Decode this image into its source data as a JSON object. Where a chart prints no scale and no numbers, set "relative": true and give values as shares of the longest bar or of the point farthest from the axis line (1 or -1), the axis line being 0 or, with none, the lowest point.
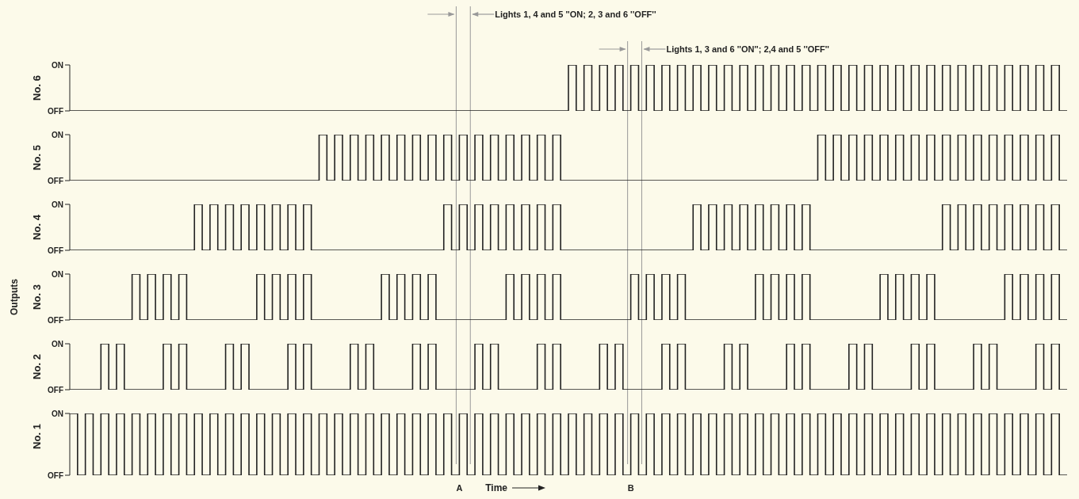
{
  "chart_data": [
    {
      "type": "step",
      "ylabel": "No. 6",
      "tick_labels": false,
      "relative": true,
      "categories": [
        null,
        null,
        null,
        null,
        null,
        null,
        null,
        null,
        null,
        null,
        null,
        null,
        null,
        null,
        null,
        null,
        null,
        null,
        null,
        null,
        null,
        null,
        null,
        null,
        null,
        null,
        null,
        null,
        null,
        null,
        null,
        null,
        null,
        null,
        null,
        null,
        null,
        null,
        null,
        null,
        null,
        null,
        null,
        null,
        null,
        null,
        null,
        null,
        null,
        null,
        null,
        null,
        null,
        null,
        null,
        null,
        null,
        null,
        null,
        null,
        null,
        null,
        null,
        null,
        null,
        null,
        null,
        null,
        null,
        null,
        null,
        null,
        null,
        null,
        null,
        null,
        null,
        null,
        null,
        null,
        null,
        null,
        null,
        null,
        null,
        null,
        null,
        null,
        null,
        null,
        null,
        null,
        null,
        null,
        null,
        null,
        null,
        null,
        null,
        null,
        null,
        null,
        null,
        null,
        null,
        null,
        null,
        null,
        null,
        null,
        null,
        null,
        null,
        null,
        null,
        null,
        null,
        null,
        null,
        null,
        null,
        null,
        null,
        null,
        null,
        null,
        null,
        null,
        null
      ],
      "series": [
        {
          "color": "#222222",
          "values": [
            0,
            0,
            0,
            0,
            0,
            0,
            0,
            0,
            0,
            0,
            0,
            0,
            0,
            0,
            0,
            0,
            0,
            0,
            0,
            0,
            0,
            0,
            0,
            0,
            0,
            0,
            0,
            0,
            0,
            0,
            0,
            0,
            0,
            0,
            0,
            0,
            0,
            0,
            0,
            0,
            0,
            0,
            0,
            0,
            0,
            0,
            0,
            0,
            0,
            0,
            0,
            0,
            0,
            0,
            0,
            0,
            0,
            0,
            0,
            0,
            0,
            0,
            0,
            0,
            1,
            0,
            1,
            0,
            1,
            0,
            1,
            0,
            1,
            0,
            1,
            0,
            1,
            0,
            1,
            0,
            1,
            0,
            1,
            0,
            1,
            0,
            1,
            0,
            1,
            0,
            1,
            0,
            1,
            0,
            1,
            0,
            1,
            0,
            1,
            0,
            1,
            0,
            1,
            0,
            1,
            0,
            1,
            0,
            1,
            0,
            1,
            0,
            1,
            0,
            1,
            0,
            1,
            0,
            1,
            0,
            1,
            0,
            1,
            0,
            1,
            0,
            1,
            0,
            0
          ]
        }
      ],
      "annotations": [
        "ON",
        "OFF"
      ]
    },
    {
      "type": "step",
      "ylabel": "No. 5",
      "tick_labels": false,
      "relative": true,
      "categories": [
        null,
        null,
        null,
        null,
        null,
        null,
        null,
        null,
        null,
        null,
        null,
        null,
        null,
        null,
        null,
        null,
        null,
        null,
        null,
        null,
        null,
        null,
        null,
        null,
        null,
        null,
        null,
        null,
        null,
        null,
        null,
        null,
        null,
        null,
        null,
        null,
        null,
        null,
        null,
        null,
        null,
        null,
        null,
        null,
        null,
        null,
        null,
        null,
        null,
        null,
        null,
        null,
        null,
        null,
        null,
        null,
        null,
        null,
        null,
        null,
        null,
        null,
        null,
        null,
        null,
        null,
        null,
        null,
        null,
        null,
        null,
        null,
        null,
        null,
        null,
        null,
        null,
        null,
        null,
        null,
        null,
        null,
        null,
        null,
        null,
        null,
        null,
        null,
        null,
        null,
        null,
        null,
        null,
        null,
        null,
        null,
        null,
        null,
        null,
        null,
        null,
        null,
        null,
        null,
        null,
        null,
        null,
        null,
        null,
        null,
        null,
        null,
        null,
        null,
        null,
        null,
        null,
        null,
        null,
        null,
        null,
        null,
        null,
        null,
        null,
        null,
        null,
        null,
        null
      ],
      "series": [
        {
          "color": "#222222",
          "values": [
            0,
            0,
            0,
            0,
            0,
            0,
            0,
            0,
            0,
            0,
            0,
            0,
            0,
            0,
            0,
            0,
            0,
            0,
            0,
            0,
            0,
            0,
            0,
            0,
            0,
            0,
            0,
            0,
            0,
            0,
            0,
            0,
            1,
            0,
            1,
            0,
            1,
            0,
            1,
            0,
            1,
            0,
            1,
            0,
            1,
            0,
            1,
            0,
            1,
            0,
            1,
            0,
            1,
            0,
            1,
            0,
            1,
            0,
            1,
            0,
            1,
            0,
            1,
            0,
            0,
            0,
            0,
            0,
            0,
            0,
            0,
            0,
            0,
            0,
            0,
            0,
            0,
            0,
            0,
            0,
            0,
            0,
            0,
            0,
            0,
            0,
            0,
            0,
            0,
            0,
            0,
            0,
            0,
            0,
            0,
            0,
            1,
            0,
            1,
            0,
            1,
            0,
            1,
            0,
            1,
            0,
            1,
            0,
            1,
            0,
            1,
            0,
            1,
            0,
            1,
            0,
            1,
            0,
            1,
            0,
            1,
            0,
            1,
            0,
            1,
            0,
            1,
            0,
            0
          ]
        }
      ],
      "annotations": [
        "ON",
        "OFF"
      ]
    },
    {
      "type": "step",
      "ylabel": "No. 4",
      "tick_labels": false,
      "relative": true,
      "categories": [
        null,
        null,
        null,
        null,
        null,
        null,
        null,
        null,
        null,
        null,
        null,
        null,
        null,
        null,
        null,
        null,
        null,
        null,
        null,
        null,
        null,
        null,
        null,
        null,
        null,
        null,
        null,
        null,
        null,
        null,
        null,
        null,
        null,
        null,
        null,
        null,
        null,
        null,
        null,
        null,
        null,
        null,
        null,
        null,
        null,
        null,
        null,
        null,
        null,
        null,
        null,
        null,
        null,
        null,
        null,
        null,
        null,
        null,
        null,
        null,
        null,
        null,
        null,
        null,
        null,
        null,
        null,
        null,
        null,
        null,
        null,
        null,
        null,
        null,
        null,
        null,
        null,
        null,
        null,
        null,
        null,
        null,
        null,
        null,
        null,
        null,
        null,
        null,
        null,
        null,
        null,
        null,
        null,
        null,
        null,
        null,
        null,
        null,
        null,
        null,
        null,
        null,
        null,
        null,
        null,
        null,
        null,
        null,
        null,
        null,
        null,
        null,
        null,
        null,
        null,
        null,
        null,
        null,
        null,
        null,
        null,
        null,
        null,
        null,
        null,
        null,
        null,
        null,
        null
      ],
      "series": [
        {
          "color": "#222222",
          "values": [
            0,
            0,
            0,
            0,
            0,
            0,
            0,
            0,
            0,
            0,
            0,
            0,
            0,
            0,
            0,
            0,
            1,
            0,
            1,
            0,
            1,
            0,
            1,
            0,
            1,
            0,
            1,
            0,
            1,
            0,
            1,
            0,
            0,
            0,
            0,
            0,
            0,
            0,
            0,
            0,
            0,
            0,
            0,
            0,
            0,
            0,
            0,
            0,
            1,
            0,
            1,
            0,
            1,
            0,
            1,
            0,
            1,
            0,
            1,
            0,
            1,
            0,
            1,
            0,
            0,
            0,
            0,
            0,
            0,
            0,
            0,
            0,
            0,
            0,
            0,
            0,
            0,
            0,
            0,
            0,
            1,
            0,
            1,
            0,
            1,
            0,
            1,
            0,
            1,
            0,
            1,
            0,
            1,
            0,
            1,
            0,
            0,
            0,
            0,
            0,
            0,
            0,
            0,
            0,
            0,
            0,
            0,
            0,
            0,
            0,
            0,
            0,
            1,
            0,
            1,
            0,
            1,
            0,
            1,
            0,
            1,
            0,
            1,
            0,
            1,
            0,
            1,
            0,
            0
          ]
        }
      ],
      "annotations": [
        "ON",
        "OFF"
      ]
    },
    {
      "type": "step",
      "ylabel": "No. 3",
      "tick_labels": false,
      "relative": true,
      "categories": [
        null,
        null,
        null,
        null,
        null,
        null,
        null,
        null,
        null,
        null,
        null,
        null,
        null,
        null,
        null,
        null,
        null,
        null,
        null,
        null,
        null,
        null,
        null,
        null,
        null,
        null,
        null,
        null,
        null,
        null,
        null,
        null,
        null,
        null,
        null,
        null,
        null,
        null,
        null,
        null,
        null,
        null,
        null,
        null,
        null,
        null,
        null,
        null,
        null,
        null,
        null,
        null,
        null,
        null,
        null,
        null,
        null,
        null,
        null,
        null,
        null,
        null,
        null,
        null,
        null,
        null,
        null,
        null,
        null,
        null,
        null,
        null,
        null,
        null,
        null,
        null,
        null,
        null,
        null,
        null,
        null,
        null,
        null,
        null,
        null,
        null,
        null,
        null,
        null,
        null,
        null,
        null,
        null,
        null,
        null,
        null,
        null,
        null,
        null,
        null,
        null,
        null,
        null,
        null,
        null,
        null,
        null,
        null,
        null,
        null,
        null,
        null,
        null,
        null,
        null,
        null,
        null,
        null,
        null,
        null,
        null,
        null,
        null,
        null,
        null,
        null,
        null,
        null,
        null
      ],
      "series": [
        {
          "color": "#222222",
          "values": [
            0,
            0,
            0,
            0,
            0,
            0,
            0,
            0,
            1,
            0,
            1,
            0,
            1,
            0,
            1,
            0,
            0,
            0,
            0,
            0,
            0,
            0,
            0,
            0,
            1,
            0,
            1,
            0,
            1,
            0,
            1,
            0,
            0,
            0,
            0,
            0,
            0,
            0,
            0,
            0,
            1,
            0,
            1,
            0,
            1,
            0,
            1,
            0,
            0,
            0,
            0,
            0,
            0,
            0,
            0,
            0,
            1,
            0,
            1,
            0,
            1,
            0,
            1,
            0,
            0,
            0,
            0,
            0,
            0,
            0,
            0,
            0,
            1,
            0,
            1,
            0,
            1,
            0,
            1,
            0,
            0,
            0,
            0,
            0,
            0,
            0,
            0,
            0,
            1,
            0,
            1,
            0,
            1,
            0,
            1,
            0,
            0,
            0,
            0,
            0,
            0,
            0,
            0,
            0,
            1,
            0,
            1,
            0,
            1,
            0,
            1,
            0,
            0,
            0,
            0,
            0,
            0,
            0,
            0,
            0,
            1,
            0,
            1,
            0,
            1,
            0,
            1,
            0,
            0
          ]
        }
      ],
      "annotations": [
        "ON",
        "OFF",
        "Outputs"
      ]
    },
    {
      "type": "step",
      "ylabel": "No. 2",
      "tick_labels": false,
      "relative": true,
      "categories": [
        null,
        null,
        null,
        null,
        null,
        null,
        null,
        null,
        null,
        null,
        null,
        null,
        null,
        null,
        null,
        null,
        null,
        null,
        null,
        null,
        null,
        null,
        null,
        null,
        null,
        null,
        null,
        null,
        null,
        null,
        null,
        null,
        null,
        null,
        null,
        null,
        null,
        null,
        null,
        null,
        null,
        null,
        null,
        null,
        null,
        null,
        null,
        null,
        null,
        null,
        null,
        null,
        null,
        null,
        null,
        null,
        null,
        null,
        null,
        null,
        null,
        null,
        null,
        null,
        null,
        null,
        null,
        null,
        null,
        null,
        null,
        null,
        null,
        null,
        null,
        null,
        null,
        null,
        null,
        null,
        null,
        null,
        null,
        null,
        null,
        null,
        null,
        null,
        null,
        null,
        null,
        null,
        null,
        null,
        null,
        null,
        null,
        null,
        null,
        null,
        null,
        null,
        null,
        null,
        null,
        null,
        null,
        null,
        null,
        null,
        null,
        null,
        null,
        null,
        null,
        null,
        null,
        null,
        null,
        null,
        null,
        null,
        null,
        null,
        null,
        null,
        null,
        null,
        null
      ],
      "series": [
        {
          "color": "#222222",
          "values": [
            0,
            0,
            0,
            0,
            1,
            0,
            1,
            0,
            0,
            0,
            0,
            0,
            1,
            0,
            1,
            0,
            0,
            0,
            0,
            0,
            1,
            0,
            1,
            0,
            0,
            0,
            0,
            0,
            1,
            0,
            1,
            0,
            0,
            0,
            0,
            0,
            1,
            0,
            1,
            0,
            0,
            0,
            0,
            0,
            1,
            0,
            1,
            0,
            0,
            0,
            0,
            0,
            1,
            0,
            1,
            0,
            0,
            0,
            0,
            0,
            1,
            0,
            1,
            0,
            0,
            0,
            0,
            0,
            1,
            0,
            1,
            0,
            0,
            0,
            0,
            0,
            1,
            0,
            1,
            0,
            0,
            0,
            0,
            0,
            1,
            0,
            1,
            0,
            0,
            0,
            0,
            0,
            1,
            0,
            1,
            0,
            0,
            0,
            0,
            0,
            1,
            0,
            1,
            0,
            0,
            0,
            0,
            0,
            1,
            0,
            1,
            0,
            0,
            0,
            0,
            0,
            1,
            0,
            1,
            0,
            0,
            0,
            0,
            0,
            1,
            0,
            1,
            0,
            0
          ]
        }
      ],
      "annotations": [
        "ON",
        "OFF"
      ]
    },
    {
      "type": "step",
      "ylabel": "No. 1",
      "xlabel": "Time",
      "tick_labels": "x",
      "relative": true,
      "categories": [
        null,
        null,
        null,
        null,
        null,
        null,
        null,
        null,
        null,
        null,
        null,
        null,
        null,
        null,
        null,
        null,
        null,
        null,
        null,
        null,
        null,
        null,
        null,
        null,
        null,
        null,
        null,
        null,
        null,
        null,
        null,
        null,
        null,
        null,
        null,
        null,
        null,
        null,
        null,
        null,
        null,
        null,
        null,
        null,
        null,
        null,
        null,
        null,
        null,
        null,
        "A",
        null,
        null,
        null,
        null,
        null,
        null,
        null,
        null,
        null,
        null,
        null,
        null,
        null,
        null,
        null,
        null,
        null,
        null,
        null,
        null,
        null,
        "B",
        null,
        null,
        null,
        null,
        null,
        null,
        null,
        null,
        null,
        null,
        null,
        null,
        null,
        null,
        null,
        null,
        null,
        null,
        null,
        null,
        null,
        null,
        null,
        null,
        null,
        null,
        null,
        null,
        null,
        null,
        null,
        null,
        null,
        null,
        null,
        null,
        null,
        null,
        null,
        null,
        null,
        null,
        null,
        null,
        null,
        null,
        null,
        null,
        null,
        null,
        null,
        null,
        null,
        null,
        null,
        null
      ],
      "series": [
        {
          "color": "#222222",
          "values": [
            1,
            0,
            1,
            0,
            1,
            0,
            1,
            0,
            1,
            0,
            1,
            0,
            1,
            0,
            1,
            0,
            1,
            0,
            1,
            0,
            1,
            0,
            1,
            0,
            1,
            0,
            1,
            0,
            1,
            0,
            1,
            0,
            1,
            0,
            1,
            0,
            1,
            0,
            1,
            0,
            1,
            0,
            1,
            0,
            1,
            0,
            1,
            0,
            1,
            0,
            1,
            0,
            1,
            0,
            1,
            0,
            1,
            0,
            1,
            0,
            1,
            0,
            1,
            0,
            1,
            0,
            1,
            0,
            1,
            0,
            1,
            0,
            1,
            0,
            1,
            0,
            1,
            0,
            1,
            0,
            1,
            0,
            1,
            0,
            1,
            0,
            1,
            0,
            1,
            0,
            1,
            0,
            1,
            0,
            1,
            0,
            1,
            0,
            1,
            0,
            1,
            0,
            1,
            0,
            1,
            0,
            1,
            0,
            1,
            0,
            1,
            0,
            1,
            0,
            1,
            0,
            1,
            0,
            1,
            0,
            1,
            0,
            1,
            0,
            1,
            0,
            1,
            0,
            0
          ]
        }
      ],
      "annotations": [
        "ON",
        "OFF",
        "Lights 1, 4 and 5 ''ON; 2, 3 and 6 ''OFF''",
        "Lights 1, 3 and 6 ''ON''; 2,4 and 5 ''OFF''"
      ]
    }
  ]
}
